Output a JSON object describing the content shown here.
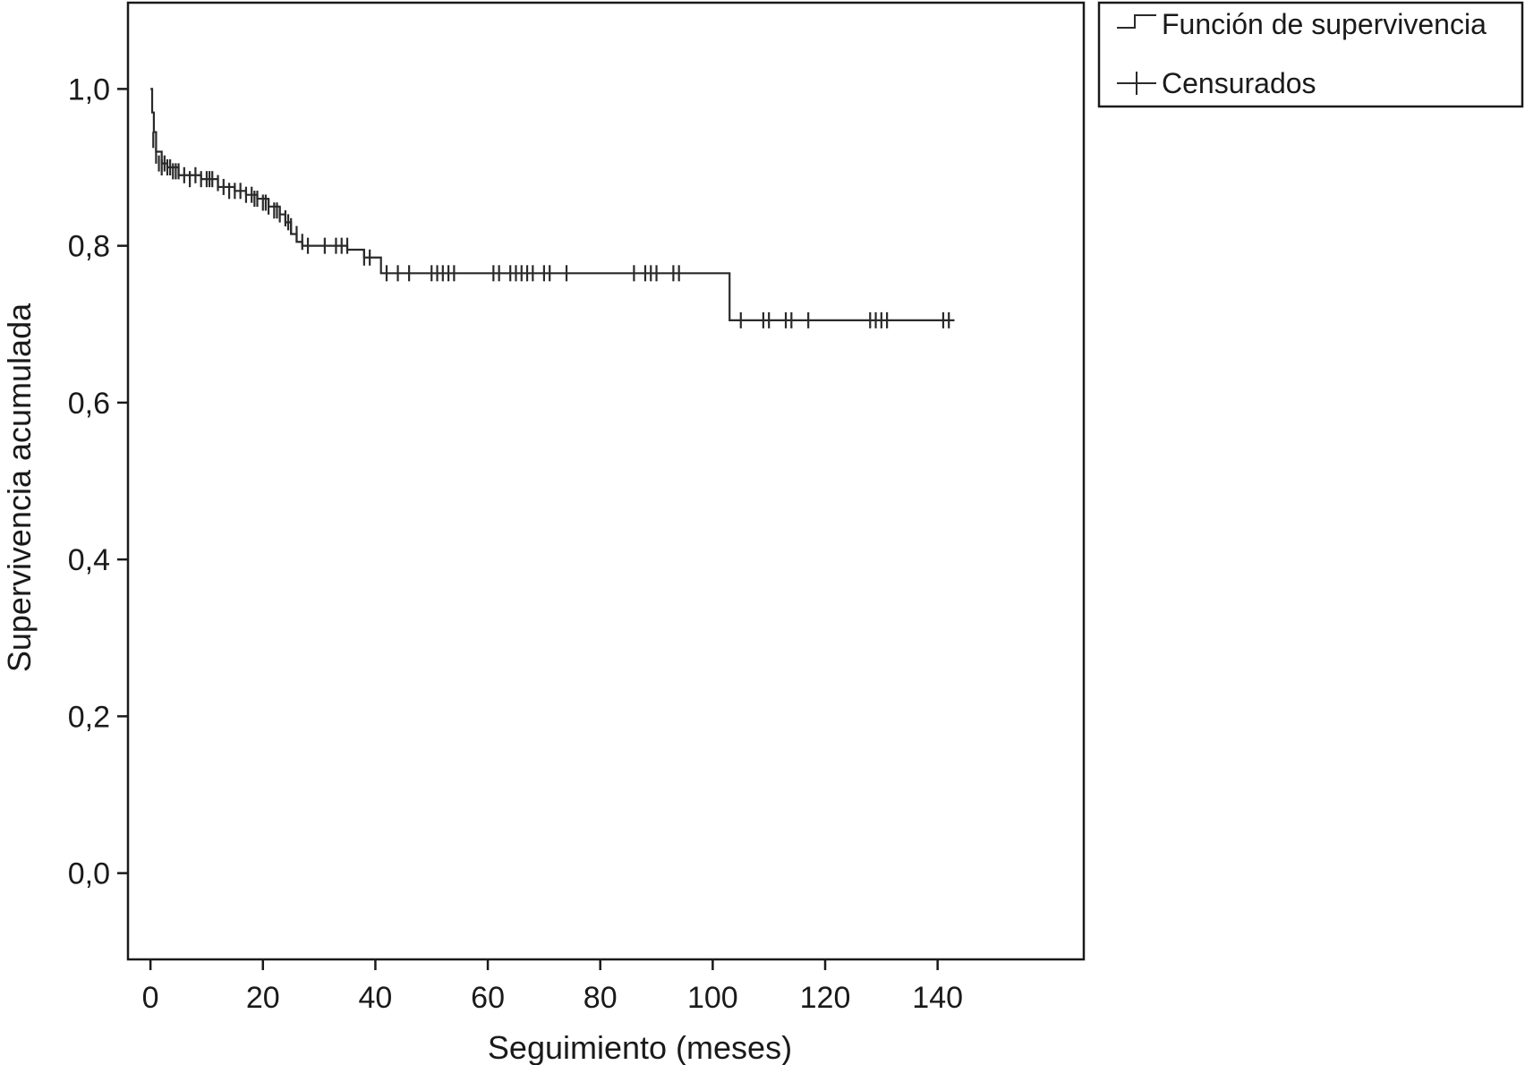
{
  "chart_data": {
    "type": "line",
    "xlabel": "Seguimiento (meses)",
    "ylabel": "Supervivencia acumulada",
    "xlim": [
      -4,
      166
    ],
    "ylim": [
      -0.11,
      1.11
    ],
    "xticks": [
      0,
      20,
      40,
      60,
      80,
      100,
      120,
      140
    ],
    "xtick_labels": [
      "0",
      "20",
      "40",
      "60",
      "80",
      "100",
      "120",
      "140"
    ],
    "yticks": [
      0.0,
      0.2,
      0.4,
      0.6,
      0.8,
      1.0
    ],
    "ytick_labels": [
      "0,0",
      "0,2",
      "0,4",
      "0,6",
      "0,8",
      "1,0"
    ],
    "grid": false,
    "legend_position": "outside-top-right",
    "legend": [
      {
        "label": "Función de supervivencia",
        "symbol": "step"
      },
      {
        "label": "Censurados",
        "symbol": "cross"
      }
    ],
    "series": [
      {
        "name": "Función de supervivencia",
        "kind": "step",
        "color": "#2a2a2a",
        "x": [
          0,
          0.3,
          0.6,
          1,
          2,
          3,
          5,
          9,
          12,
          15,
          17,
          19,
          21,
          23,
          24,
          25,
          26,
          27,
          35,
          38,
          41,
          103,
          143
        ],
        "y": [
          1.0,
          0.97,
          0.945,
          0.92,
          0.905,
          0.9,
          0.89,
          0.885,
          0.875,
          0.87,
          0.865,
          0.86,
          0.85,
          0.84,
          0.83,
          0.815,
          0.805,
          0.8,
          0.795,
          0.785,
          0.765,
          0.705,
          0.705
        ]
      },
      {
        "name": "Censurados",
        "kind": "censor",
        "color": "#2a2a2a",
        "x": [
          0.5,
          1,
          1.5,
          2,
          2.5,
          3,
          3.5,
          4,
          4.5,
          5,
          6,
          7,
          8,
          9,
          10,
          10.5,
          11,
          12,
          13,
          14,
          15,
          16,
          17,
          18,
          18.5,
          19,
          20,
          20.5,
          21,
          22,
          22.5,
          23,
          24,
          24.5,
          25,
          26,
          27,
          28,
          31,
          33,
          34,
          35,
          38,
          39,
          42,
          44,
          46,
          50,
          51,
          52,
          53,
          54,
          61,
          62,
          64,
          65,
          66,
          67,
          68,
          70,
          71,
          74,
          86,
          88,
          89,
          90,
          93,
          94,
          105,
          109,
          110,
          113,
          114,
          117,
          128,
          129,
          130,
          131,
          141,
          142
        ],
        "y": [
          0.935,
          0.915,
          0.905,
          0.9,
          0.905,
          0.9,
          0.9,
          0.895,
          0.895,
          0.895,
          0.89,
          0.885,
          0.89,
          0.885,
          0.885,
          0.885,
          0.885,
          0.88,
          0.875,
          0.87,
          0.87,
          0.87,
          0.865,
          0.865,
          0.86,
          0.86,
          0.855,
          0.855,
          0.85,
          0.845,
          0.845,
          0.84,
          0.835,
          0.83,
          0.825,
          0.815,
          0.805,
          0.8,
          0.8,
          0.8,
          0.8,
          0.8,
          0.785,
          0.785,
          0.765,
          0.765,
          0.765,
          0.765,
          0.765,
          0.765,
          0.765,
          0.765,
          0.765,
          0.765,
          0.765,
          0.765,
          0.765,
          0.765,
          0.765,
          0.765,
          0.765,
          0.765,
          0.765,
          0.765,
          0.765,
          0.765,
          0.765,
          0.765,
          0.705,
          0.705,
          0.705,
          0.705,
          0.705,
          0.705,
          0.705,
          0.705,
          0.705,
          0.705,
          0.705,
          0.705
        ]
      }
    ]
  }
}
